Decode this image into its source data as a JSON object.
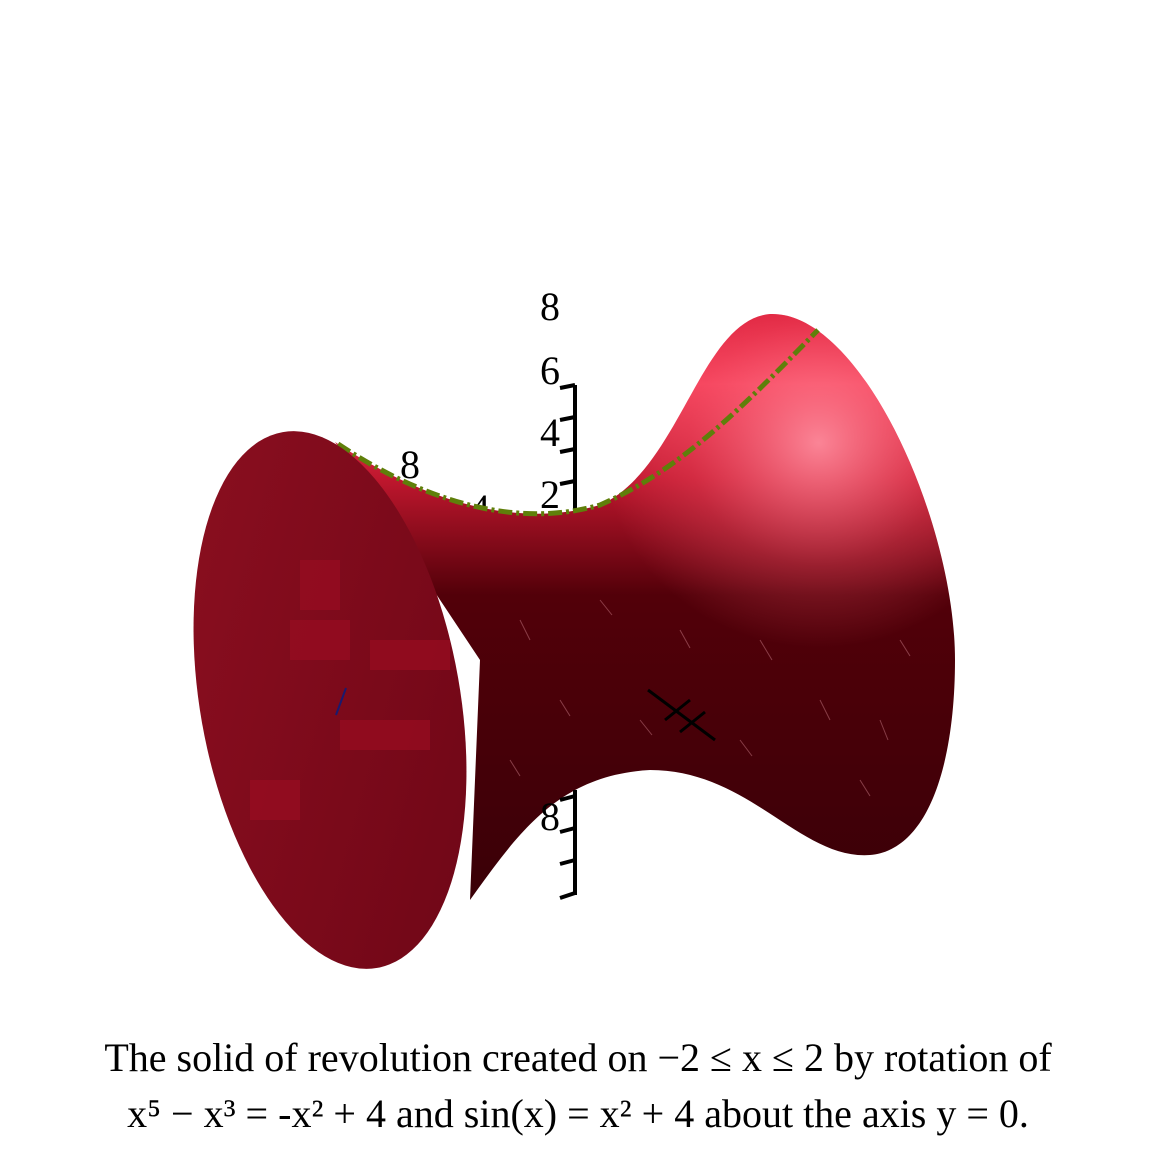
{
  "figure": {
    "axis_ticks": {
      "z_upper": [
        "8",
        "6",
        "4",
        "2"
      ],
      "y_back": [
        "8",
        "4"
      ],
      "z_lower": [
        "8"
      ]
    },
    "colors": {
      "surface_dark": "#3d0008",
      "surface_mid": "#7a0012",
      "surface_light": "#ff7d8e",
      "end_cap": "#7d0a1a",
      "profile_curve": "#5f7f0a",
      "axes": "#000000"
    }
  },
  "caption": {
    "line1_text": "The solid of revolution created on",
    "line1_math": "−2 ≤ x ≤ 2",
    "line1_tail": "by rotation of",
    "line2_f": "x⁵ − x³ = -x² + 4",
    "line2_and": "and",
    "line2_g": "sin(x) = x² + 4",
    "line2_tail": "about the axis",
    "line2_axis": "y = 0."
  }
}
